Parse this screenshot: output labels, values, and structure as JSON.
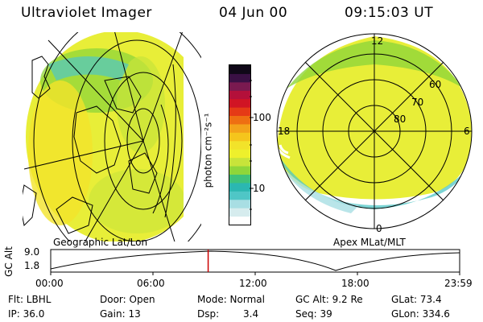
{
  "header": {
    "instrument": "Ultraviolet Imager",
    "date": "04 Jun 00",
    "time": "09:15:03 UT"
  },
  "geo_panel": {
    "label": "Geographic Lat/Lon"
  },
  "apex_panel": {
    "label": "Apex MLat/MLT",
    "mlt_labels": {
      "top": "12",
      "left": "18",
      "right": "6",
      "bottom": "0"
    },
    "mlat_labels": [
      "60",
      "70",
      "80"
    ]
  },
  "colorbar": {
    "unit": "photon cm⁻²s⁻¹",
    "ticks": [
      "100",
      "10"
    ],
    "colors": [
      "#ffffff",
      "#d6ecee",
      "#a8dee3",
      "#4fc6c6",
      "#2bb7b1",
      "#3fc27a",
      "#8fd63a",
      "#c8e43a",
      "#eef02c",
      "#f2e32a",
      "#f5c51c",
      "#f3a31a",
      "#ee6f12",
      "#e53a16",
      "#d11424",
      "#b4103a",
      "#7a1a50",
      "#3a1044",
      "#100818"
    ]
  },
  "timeline": {
    "axis_label": "GC Alt",
    "y_ticks": [
      "9.0",
      "1.8"
    ],
    "x_ticks": [
      "00:00",
      "06:00",
      "12:00",
      "18:00",
      "23:59"
    ],
    "current_time_fraction": 0.385,
    "marker_color": "#cc0000"
  },
  "status": {
    "row1": {
      "filter": "Flt: LBHL",
      "door": "Door: Open",
      "mode": "Mode: Normal",
      "gc_alt": "GC Alt: 9.2 Re",
      "glat": "GLat: 73.4"
    },
    "row2": {
      "ip": "IP: 36.0",
      "gain": "Gain: 13",
      "dsp_label": "Dsp:",
      "dsp_value": "3.4",
      "seq": "Seq: 39",
      "glon": "GLon: 334.6"
    }
  }
}
